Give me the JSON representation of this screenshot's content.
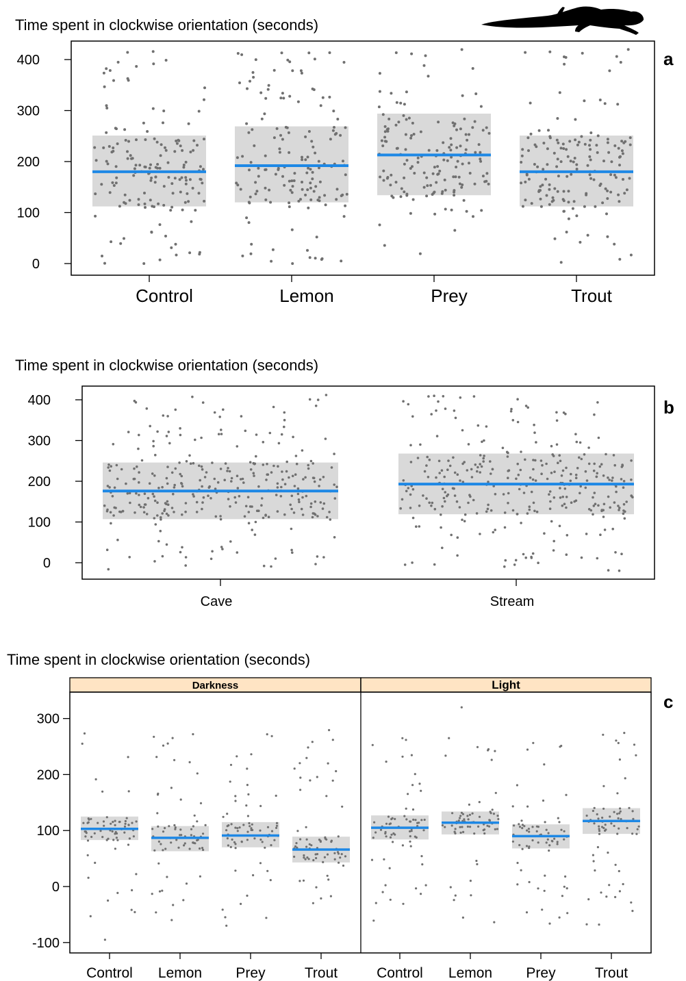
{
  "figure": {
    "panels": [
      {
        "letter": "a",
        "ylabel": "Time spent in clockwise orientation (seconds)"
      },
      {
        "letter": "b",
        "ylabel": "Time spent in clockwise orientation (seconds)"
      },
      {
        "letter": "c",
        "ylabel": "Time spent in clockwise orientation (seconds)"
      }
    ],
    "colors": {
      "mean_line": "#1E88E5",
      "ci_band": "#D9D9D9",
      "points": "#707070",
      "strip_bg": "#FFE4C4"
    },
    "icons": [
      "salamander-silhouette-icon"
    ]
  },
  "chart_data": [
    {
      "id": "a",
      "type": "scatter",
      "title": "",
      "ylabel": "Time spent in clockwise orientation (seconds)",
      "xlabel": "",
      "ylim": [
        -20,
        425
      ],
      "yticks": [
        0,
        100,
        200,
        300,
        400
      ],
      "categories": [
        "Control",
        "Lemon",
        "Prey",
        "Trout"
      ],
      "means": [
        180,
        192,
        213,
        180
      ],
      "ci_lower": [
        112,
        120,
        134,
        112
      ],
      "ci_upper": [
        251,
        269,
        294,
        251
      ],
      "points_per_group": 160,
      "point_range": [
        0,
        420
      ],
      "legend": "none",
      "grid": false
    },
    {
      "id": "b",
      "type": "scatter",
      "title": "",
      "ylabel": "Time spent in clockwise orientation (seconds)",
      "xlabel": "",
      "ylim": [
        -40,
        420
      ],
      "yticks": [
        0,
        100,
        200,
        300,
        400
      ],
      "categories": [
        "Cave",
        "Stream"
      ],
      "means": [
        176,
        193
      ],
      "ci_lower": [
        107,
        119
      ],
      "ci_upper": [
        246,
        268
      ],
      "points_per_group": 320,
      "point_range": [
        -20,
        415
      ],
      "legend": "none",
      "grid": false
    },
    {
      "id": "c",
      "type": "scatter",
      "title": "",
      "ylabel": "Time spent in clockwise orientation (seconds)",
      "xlabel": "",
      "ylim": [
        -105,
        340
      ],
      "yticks": [
        -100,
        0,
        100,
        200,
        300
      ],
      "strips": [
        "Darkness",
        "Light"
      ],
      "facets": [
        {
          "strip": "Darkness",
          "categories": [
            "Control",
            "Lemon",
            "Prey",
            "Trout"
          ],
          "means": [
            103,
            87,
            91,
            66
          ],
          "ci_lower": [
            83,
            63,
            70,
            43
          ],
          "ci_upper": [
            125,
            108,
            115,
            89
          ]
        },
        {
          "strip": "Light",
          "categories": [
            "Control",
            "Lemon",
            "Prey",
            "Trout"
          ],
          "means": [
            105,
            114,
            90,
            117
          ],
          "ci_lower": [
            84,
            93,
            68,
            94
          ],
          "ci_upper": [
            127,
            134,
            111,
            140
          ]
        }
      ],
      "points_per_group": 70,
      "point_range": [
        -100,
        320
      ],
      "legend": "none",
      "grid": false
    }
  ]
}
